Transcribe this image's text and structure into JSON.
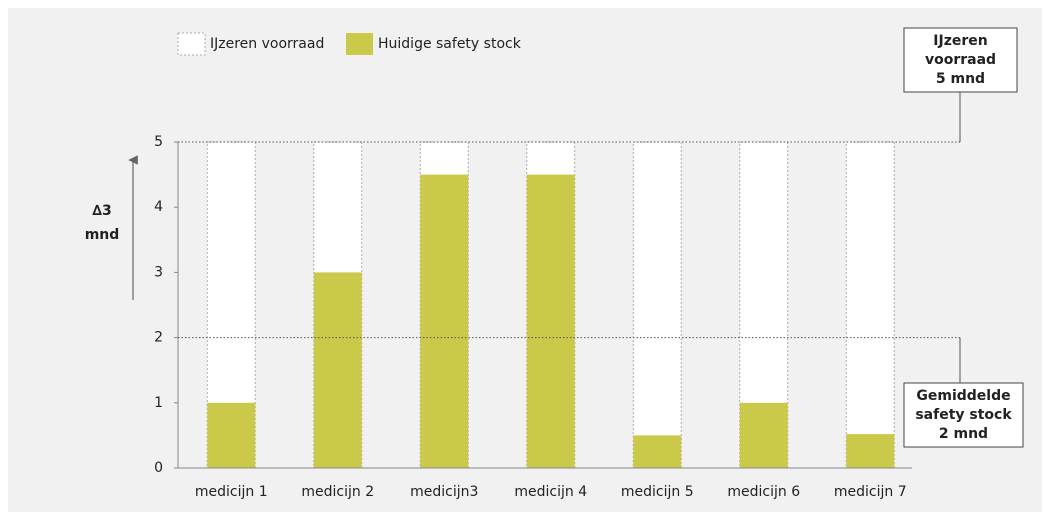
{
  "chart_data": {
    "type": "bar",
    "categories": [
      "medicijn 1",
      "medicijn 2",
      "medicijn3",
      "medicijn 4",
      "medicijn 5",
      "medicijn 6",
      "medicijn 7"
    ],
    "series": [
      {
        "name": "IJzeren voorraad",
        "color": "#ffffff",
        "values": [
          5,
          5,
          5,
          5,
          5,
          5,
          5
        ]
      },
      {
        "name": "Huidige safety stock",
        "color": "#cbc94a",
        "values": [
          1,
          3,
          4.5,
          4.5,
          0.5,
          1,
          0.52
        ]
      }
    ],
    "ylim": [
      0,
      5
    ],
    "yticks": [
      0,
      1,
      2,
      3,
      4,
      5
    ],
    "axis_annotation": [
      "∆3",
      "mnd"
    ],
    "reference_lines": [
      {
        "value": 5,
        "label": [
          "IJzeren",
          "voorraad",
          "5 mnd"
        ]
      },
      {
        "value": 2,
        "label": [
          "Gemiddelde",
          "safety stock",
          "2 mnd"
        ]
      }
    ]
  }
}
